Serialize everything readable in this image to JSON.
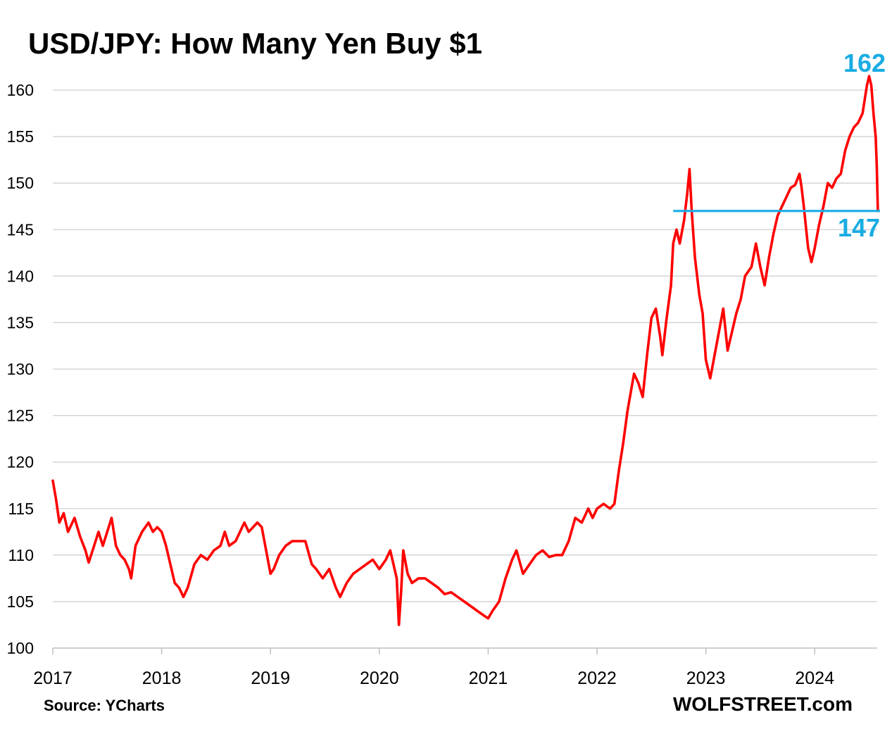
{
  "chart_data": {
    "type": "line",
    "title": "USD/JPY: How Many Yen Buy $1",
    "xlabel": "",
    "ylabel": "",
    "xlim": [
      2017.0,
      2024.6
    ],
    "ylim": [
      100,
      162
    ],
    "yticks": [
      100,
      105,
      110,
      115,
      120,
      125,
      130,
      135,
      140,
      145,
      150,
      155,
      160
    ],
    "ytick_labels": [
      "100",
      "105",
      "110",
      "115",
      "120",
      "125",
      "130",
      "135",
      "140",
      "145",
      "150",
      "155",
      "160"
    ],
    "xticks": [
      2017,
      2018,
      2019,
      2020,
      2021,
      2022,
      2023,
      2024
    ],
    "xtick_labels": [
      "2017",
      "2018",
      "2019",
      "2020",
      "2021",
      "2022",
      "2023",
      "2024"
    ],
    "grid": "horizontal",
    "series": [
      {
        "color": "#FF0000",
        "points": [
          [
            2017.0,
            118.0
          ],
          [
            2017.03,
            116.0
          ],
          [
            2017.06,
            113.5
          ],
          [
            2017.1,
            114.5
          ],
          [
            2017.14,
            112.5
          ],
          [
            2017.2,
            114.0
          ],
          [
            2017.25,
            112.0
          ],
          [
            2017.3,
            110.5
          ],
          [
            2017.33,
            109.2
          ],
          [
            2017.38,
            111.0
          ],
          [
            2017.42,
            112.5
          ],
          [
            2017.46,
            111.0
          ],
          [
            2017.5,
            112.5
          ],
          [
            2017.54,
            114.0
          ],
          [
            2017.58,
            111.0
          ],
          [
            2017.62,
            110.0
          ],
          [
            2017.66,
            109.5
          ],
          [
            2017.7,
            108.5
          ],
          [
            2017.72,
            107.5
          ],
          [
            2017.76,
            111.0
          ],
          [
            2017.82,
            112.5
          ],
          [
            2017.88,
            113.5
          ],
          [
            2017.92,
            112.5
          ],
          [
            2017.96,
            113.0
          ],
          [
            2018.0,
            112.5
          ],
          [
            2018.04,
            111.0
          ],
          [
            2018.08,
            109.0
          ],
          [
            2018.12,
            107.0
          ],
          [
            2018.16,
            106.5
          ],
          [
            2018.2,
            105.5
          ],
          [
            2018.24,
            106.5
          ],
          [
            2018.3,
            109.0
          ],
          [
            2018.36,
            110.0
          ],
          [
            2018.42,
            109.5
          ],
          [
            2018.48,
            110.5
          ],
          [
            2018.54,
            111.0
          ],
          [
            2018.58,
            112.5
          ],
          [
            2018.62,
            111.0
          ],
          [
            2018.68,
            111.5
          ],
          [
            2018.72,
            112.5
          ],
          [
            2018.76,
            113.5
          ],
          [
            2018.8,
            112.5
          ],
          [
            2018.84,
            113.0
          ],
          [
            2018.88,
            113.5
          ],
          [
            2018.92,
            113.0
          ],
          [
            2018.96,
            110.5
          ],
          [
            2019.0,
            108.0
          ],
          [
            2019.03,
            108.5
          ],
          [
            2019.08,
            110.0
          ],
          [
            2019.14,
            111.0
          ],
          [
            2019.2,
            111.5
          ],
          [
            2019.26,
            111.5
          ],
          [
            2019.32,
            111.5
          ],
          [
            2019.38,
            109.0
          ],
          [
            2019.42,
            108.5
          ],
          [
            2019.48,
            107.5
          ],
          [
            2019.54,
            108.5
          ],
          [
            2019.6,
            106.5
          ],
          [
            2019.64,
            105.5
          ],
          [
            2019.7,
            107.0
          ],
          [
            2019.76,
            108.0
          ],
          [
            2019.82,
            108.5
          ],
          [
            2019.88,
            109.0
          ],
          [
            2019.94,
            109.5
          ],
          [
            2020.0,
            108.5
          ],
          [
            2020.06,
            109.5
          ],
          [
            2020.1,
            110.5
          ],
          [
            2020.16,
            107.5
          ],
          [
            2020.18,
            102.5
          ],
          [
            2020.2,
            106.0
          ],
          [
            2020.22,
            110.5
          ],
          [
            2020.26,
            108.0
          ],
          [
            2020.3,
            107.0
          ],
          [
            2020.36,
            107.5
          ],
          [
            2020.42,
            107.5
          ],
          [
            2020.48,
            107.0
          ],
          [
            2020.54,
            106.5
          ],
          [
            2020.6,
            105.8
          ],
          [
            2020.66,
            106.0
          ],
          [
            2020.72,
            105.5
          ],
          [
            2020.78,
            105.0
          ],
          [
            2020.84,
            104.5
          ],
          [
            2020.9,
            104.0
          ],
          [
            2020.96,
            103.5
          ],
          [
            2021.0,
            103.2
          ],
          [
            2021.04,
            104.0
          ],
          [
            2021.1,
            105.0
          ],
          [
            2021.16,
            107.5
          ],
          [
            2021.22,
            109.5
          ],
          [
            2021.26,
            110.5
          ],
          [
            2021.32,
            108.0
          ],
          [
            2021.38,
            109.0
          ],
          [
            2021.44,
            110.0
          ],
          [
            2021.5,
            110.5
          ],
          [
            2021.56,
            109.8
          ],
          [
            2021.62,
            110.0
          ],
          [
            2021.68,
            110.0
          ],
          [
            2021.74,
            111.5
          ],
          [
            2021.8,
            114.0
          ],
          [
            2021.86,
            113.5
          ],
          [
            2021.92,
            115.0
          ],
          [
            2021.96,
            114.0
          ],
          [
            2022.0,
            115.0
          ],
          [
            2022.06,
            115.5
          ],
          [
            2022.12,
            115.0
          ],
          [
            2022.16,
            115.5
          ],
          [
            2022.2,
            119.0
          ],
          [
            2022.24,
            122.0
          ],
          [
            2022.28,
            125.5
          ],
          [
            2022.34,
            129.5
          ],
          [
            2022.38,
            128.5
          ],
          [
            2022.42,
            127.0
          ],
          [
            2022.46,
            131.5
          ],
          [
            2022.5,
            135.5
          ],
          [
            2022.54,
            136.5
          ],
          [
            2022.58,
            133.5
          ],
          [
            2022.6,
            131.5
          ],
          [
            2022.64,
            135.5
          ],
          [
            2022.68,
            139.0
          ],
          [
            2022.7,
            143.5
          ],
          [
            2022.73,
            145.0
          ],
          [
            2022.76,
            143.5
          ],
          [
            2022.8,
            146.0
          ],
          [
            2022.83,
            149.0
          ],
          [
            2022.85,
            151.5
          ],
          [
            2022.87,
            147.0
          ],
          [
            2022.9,
            142.0
          ],
          [
            2022.94,
            138.0
          ],
          [
            2022.97,
            136.0
          ],
          [
            2023.0,
            131.0
          ],
          [
            2023.04,
            129.0
          ],
          [
            2023.08,
            131.5
          ],
          [
            2023.12,
            134.0
          ],
          [
            2023.16,
            136.5
          ],
          [
            2023.2,
            132.0
          ],
          [
            2023.24,
            134.0
          ],
          [
            2023.28,
            136.0
          ],
          [
            2023.32,
            137.5
          ],
          [
            2023.36,
            140.0
          ],
          [
            2023.42,
            141.0
          ],
          [
            2023.46,
            143.5
          ],
          [
            2023.5,
            141.0
          ],
          [
            2023.54,
            139.0
          ],
          [
            2023.58,
            142.0
          ],
          [
            2023.62,
            144.5
          ],
          [
            2023.66,
            146.5
          ],
          [
            2023.7,
            147.5
          ],
          [
            2023.74,
            148.5
          ],
          [
            2023.78,
            149.5
          ],
          [
            2023.82,
            149.8
          ],
          [
            2023.86,
            151.0
          ],
          [
            2023.88,
            149.5
          ],
          [
            2023.9,
            147.5
          ],
          [
            2023.94,
            143.0
          ],
          [
            2023.97,
            141.5
          ],
          [
            2024.0,
            143.0
          ],
          [
            2024.04,
            145.5
          ],
          [
            2024.08,
            147.5
          ],
          [
            2024.12,
            150.0
          ],
          [
            2024.16,
            149.5
          ],
          [
            2024.2,
            150.5
          ],
          [
            2024.24,
            151.0
          ],
          [
            2024.28,
            153.5
          ],
          [
            2024.32,
            155.0
          ],
          [
            2024.36,
            156.0
          ],
          [
            2024.4,
            156.5
          ],
          [
            2024.44,
            157.5
          ],
          [
            2024.48,
            160.5
          ],
          [
            2024.5,
            161.5
          ],
          [
            2024.52,
            160.5
          ],
          [
            2024.54,
            157.5
          ],
          [
            2024.56,
            155.0
          ],
          [
            2024.57,
            152.0
          ],
          [
            2024.58,
            147.0
          ]
        ]
      }
    ],
    "reference_line": {
      "value": 147,
      "x_start": 2022.7,
      "x_end": 2024.6,
      "color": "#19ACE3"
    },
    "annotations": [
      {
        "text": "162",
        "color": "#19ACE3"
      },
      {
        "text": "147",
        "color": "#19ACE3"
      }
    ],
    "source": "Source: YCharts",
    "watermark": "WOLFSTREET.com"
  }
}
